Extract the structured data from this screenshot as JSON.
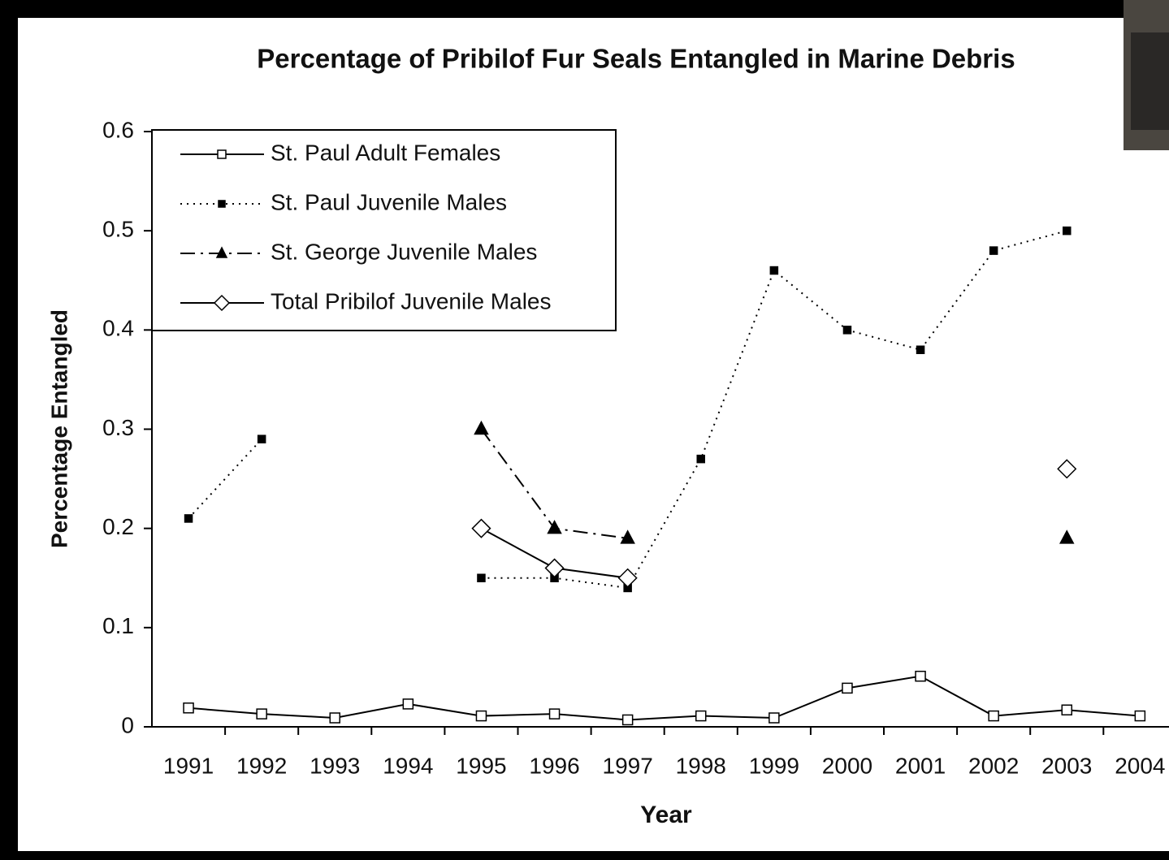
{
  "chart_data": {
    "type": "line",
    "title": "Percentage of Pribilof Fur Seals Entangled in Marine Debris",
    "x_label": "Year",
    "y_label": "Percentage Entangled",
    "categories": [
      "1991",
      "1992",
      "1993",
      "1994",
      "1995",
      "1996",
      "1997",
      "1998",
      "1999",
      "2000",
      "2001",
      "2002",
      "2003",
      "2004"
    ],
    "ylim": [
      0,
      0.6
    ],
    "yticks": [
      0,
      0.1,
      0.2,
      0.3,
      0.4,
      0.5,
      0.6
    ],
    "legend": "top-left",
    "series": [
      {
        "name": "St. Paul Adult Females",
        "color": "#000000",
        "dash": "solid",
        "marker": "open-square",
        "values": [
          0.019,
          0.013,
          0.009,
          0.023,
          0.011,
          0.013,
          0.007,
          0.011,
          0.009,
          0.039,
          0.051,
          0.011,
          0.017,
          0.011
        ]
      },
      {
        "name": "St. Paul Juvenile Males",
        "color": "#000000",
        "dash": "dotted",
        "marker": "filled-square",
        "values": [
          0.21,
          0.29,
          null,
          null,
          0.15,
          0.15,
          0.14,
          0.27,
          0.46,
          0.4,
          0.38,
          0.48,
          0.5,
          null
        ]
      },
      {
        "name": "St. George Juvenile Males",
        "color": "#000000",
        "dash": "dash-dot",
        "marker": "filled-triangle",
        "values": [
          null,
          null,
          null,
          null,
          0.3,
          0.2,
          0.19,
          null,
          null,
          null,
          null,
          null,
          0.19,
          null
        ]
      },
      {
        "name": "Total Pribilof Juvenile Males",
        "color": "#000000",
        "dash": "solid",
        "marker": "open-diamond",
        "values": [
          null,
          null,
          null,
          null,
          0.2,
          0.16,
          0.15,
          null,
          null,
          null,
          null,
          null,
          0.26,
          null
        ]
      }
    ]
  }
}
